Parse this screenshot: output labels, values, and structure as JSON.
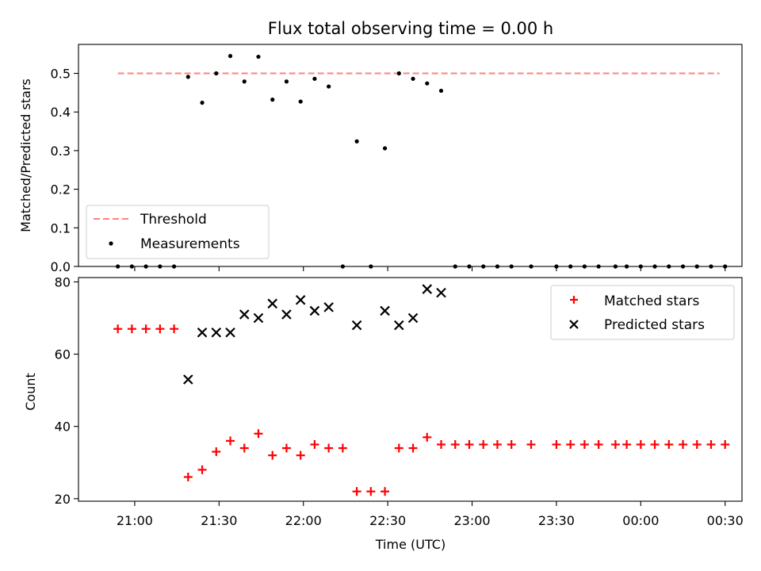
{
  "chart_data": [
    {
      "type": "scatter",
      "title": "Flux total observing time = 0.00 h",
      "ylabel": "Matched/Predicted stars",
      "xlabel": "",
      "ylim": [
        0,
        0.575
      ],
      "yticks": [
        0.0,
        0.1,
        0.2,
        0.3,
        0.4,
        0.5
      ],
      "ytick_labels": [
        "0.0",
        "0.1",
        "0.2",
        "0.3",
        "0.4",
        "0.5"
      ],
      "legend_position": "lower-left",
      "threshold": {
        "name": "Threshold",
        "value": 0.5,
        "x_start": "20:54",
        "x_end": "00:28",
        "color": "#ff8080"
      },
      "series": [
        {
          "name": "Measurements",
          "color": "#000000",
          "points": [
            {
              "x": "20:54",
              "y": 0.0
            },
            {
              "x": "20:59",
              "y": 0.0
            },
            {
              "x": "21:04",
              "y": 0.0
            },
            {
              "x": "21:09",
              "y": 0.0
            },
            {
              "x": "21:14",
              "y": 0.0
            },
            {
              "x": "21:19",
              "y": 0.491
            },
            {
              "x": "21:24",
              "y": 0.424
            },
            {
              "x": "21:29",
              "y": 0.5
            },
            {
              "x": "21:34",
              "y": 0.545
            },
            {
              "x": "21:39",
              "y": 0.479
            },
            {
              "x": "21:44",
              "y": 0.543
            },
            {
              "x": "21:49",
              "y": 0.432
            },
            {
              "x": "21:54",
              "y": 0.479
            },
            {
              "x": "21:59",
              "y": 0.427
            },
            {
              "x": "22:04",
              "y": 0.486
            },
            {
              "x": "22:09",
              "y": 0.466
            },
            {
              "x": "22:14",
              "y": 0.0
            },
            {
              "x": "22:19",
              "y": 0.324
            },
            {
              "x": "22:24",
              "y": 0.0
            },
            {
              "x": "22:29",
              "y": 0.306
            },
            {
              "x": "22:34",
              "y": 0.5
            },
            {
              "x": "22:39",
              "y": 0.486
            },
            {
              "x": "22:44",
              "y": 0.474
            },
            {
              "x": "22:49",
              "y": 0.455
            },
            {
              "x": "22:54",
              "y": 0.0
            },
            {
              "x": "22:59",
              "y": 0.0
            },
            {
              "x": "23:04",
              "y": 0.0
            },
            {
              "x": "23:09",
              "y": 0.0
            },
            {
              "x": "23:14",
              "y": 0.0
            },
            {
              "x": "23:21",
              "y": 0.0
            },
            {
              "x": "23:30",
              "y": 0.0
            },
            {
              "x": "23:35",
              "y": 0.0
            },
            {
              "x": "23:40",
              "y": 0.0
            },
            {
              "x": "23:45",
              "y": 0.0
            },
            {
              "x": "23:51",
              "y": 0.0
            },
            {
              "x": "23:55",
              "y": 0.0
            },
            {
              "x": "00:00",
              "y": 0.0
            },
            {
              "x": "00:05",
              "y": 0.0
            },
            {
              "x": "00:10",
              "y": 0.0
            },
            {
              "x": "00:15",
              "y": 0.0
            },
            {
              "x": "00:20",
              "y": 0.0
            },
            {
              "x": "00:25",
              "y": 0.0
            },
            {
              "x": "00:30",
              "y": 0.0
            }
          ]
        }
      ]
    },
    {
      "type": "scatter",
      "title": "",
      "ylabel": "Count",
      "xlabel": "Time (UTC)",
      "ylim": [
        19.3,
        81.2
      ],
      "yticks": [
        20,
        40,
        60,
        80
      ],
      "ytick_labels": [
        "20",
        "40",
        "60",
        "80"
      ],
      "xticks": [
        "21:00",
        "21:30",
        "22:00",
        "22:30",
        "23:00",
        "23:30",
        "00:00",
        "00:30"
      ],
      "xtick_labels": [
        "21:00",
        "21:30",
        "22:00",
        "22:30",
        "23:00",
        "23:30",
        "00:00",
        "00:30"
      ],
      "legend_position": "upper-right",
      "series": [
        {
          "name": "Matched stars",
          "marker": "plus",
          "color": "#ff0000",
          "points": [
            {
              "x": "20:54",
              "y": 67
            },
            {
              "x": "20:59",
              "y": 67
            },
            {
              "x": "21:04",
              "y": 67
            },
            {
              "x": "21:09",
              "y": 67
            },
            {
              "x": "21:14",
              "y": 67
            },
            {
              "x": "21:19",
              "y": 26
            },
            {
              "x": "21:24",
              "y": 28
            },
            {
              "x": "21:29",
              "y": 33
            },
            {
              "x": "21:34",
              "y": 36
            },
            {
              "x": "21:39",
              "y": 34
            },
            {
              "x": "21:44",
              "y": 38
            },
            {
              "x": "21:49",
              "y": 32
            },
            {
              "x": "21:54",
              "y": 34
            },
            {
              "x": "21:59",
              "y": 32
            },
            {
              "x": "22:04",
              "y": 35
            },
            {
              "x": "22:09",
              "y": 34
            },
            {
              "x": "22:14",
              "y": 34
            },
            {
              "x": "22:19",
              "y": 22
            },
            {
              "x": "22:24",
              "y": 22
            },
            {
              "x": "22:29",
              "y": 22
            },
            {
              "x": "22:34",
              "y": 34
            },
            {
              "x": "22:39",
              "y": 34
            },
            {
              "x": "22:44",
              "y": 37
            },
            {
              "x": "22:49",
              "y": 35
            },
            {
              "x": "22:54",
              "y": 35
            },
            {
              "x": "22:59",
              "y": 35
            },
            {
              "x": "23:04",
              "y": 35
            },
            {
              "x": "23:09",
              "y": 35
            },
            {
              "x": "23:14",
              "y": 35
            },
            {
              "x": "23:21",
              "y": 35
            },
            {
              "x": "23:30",
              "y": 35
            },
            {
              "x": "23:35",
              "y": 35
            },
            {
              "x": "23:40",
              "y": 35
            },
            {
              "x": "23:45",
              "y": 35
            },
            {
              "x": "23:51",
              "y": 35
            },
            {
              "x": "23:55",
              "y": 35
            },
            {
              "x": "00:00",
              "y": 35
            },
            {
              "x": "00:05",
              "y": 35
            },
            {
              "x": "00:10",
              "y": 35
            },
            {
              "x": "00:15",
              "y": 35
            },
            {
              "x": "00:20",
              "y": 35
            },
            {
              "x": "00:25",
              "y": 35
            },
            {
              "x": "00:30",
              "y": 35
            }
          ]
        },
        {
          "name": "Predicted stars",
          "marker": "x",
          "color": "#000000",
          "points": [
            {
              "x": "21:19",
              "y": 53
            },
            {
              "x": "21:24",
              "y": 66
            },
            {
              "x": "21:29",
              "y": 66
            },
            {
              "x": "21:34",
              "y": 66
            },
            {
              "x": "21:39",
              "y": 71
            },
            {
              "x": "21:44",
              "y": 70
            },
            {
              "x": "21:49",
              "y": 74
            },
            {
              "x": "21:54",
              "y": 71
            },
            {
              "x": "21:59",
              "y": 75
            },
            {
              "x": "22:04",
              "y": 72
            },
            {
              "x": "22:09",
              "y": 73
            },
            {
              "x": "22:19",
              "y": 68
            },
            {
              "x": "22:29",
              "y": 72
            },
            {
              "x": "22:34",
              "y": 68
            },
            {
              "x": "22:39",
              "y": 70
            },
            {
              "x": "22:44",
              "y": 78
            },
            {
              "x": "22:49",
              "y": 77
            }
          ]
        }
      ]
    }
  ]
}
